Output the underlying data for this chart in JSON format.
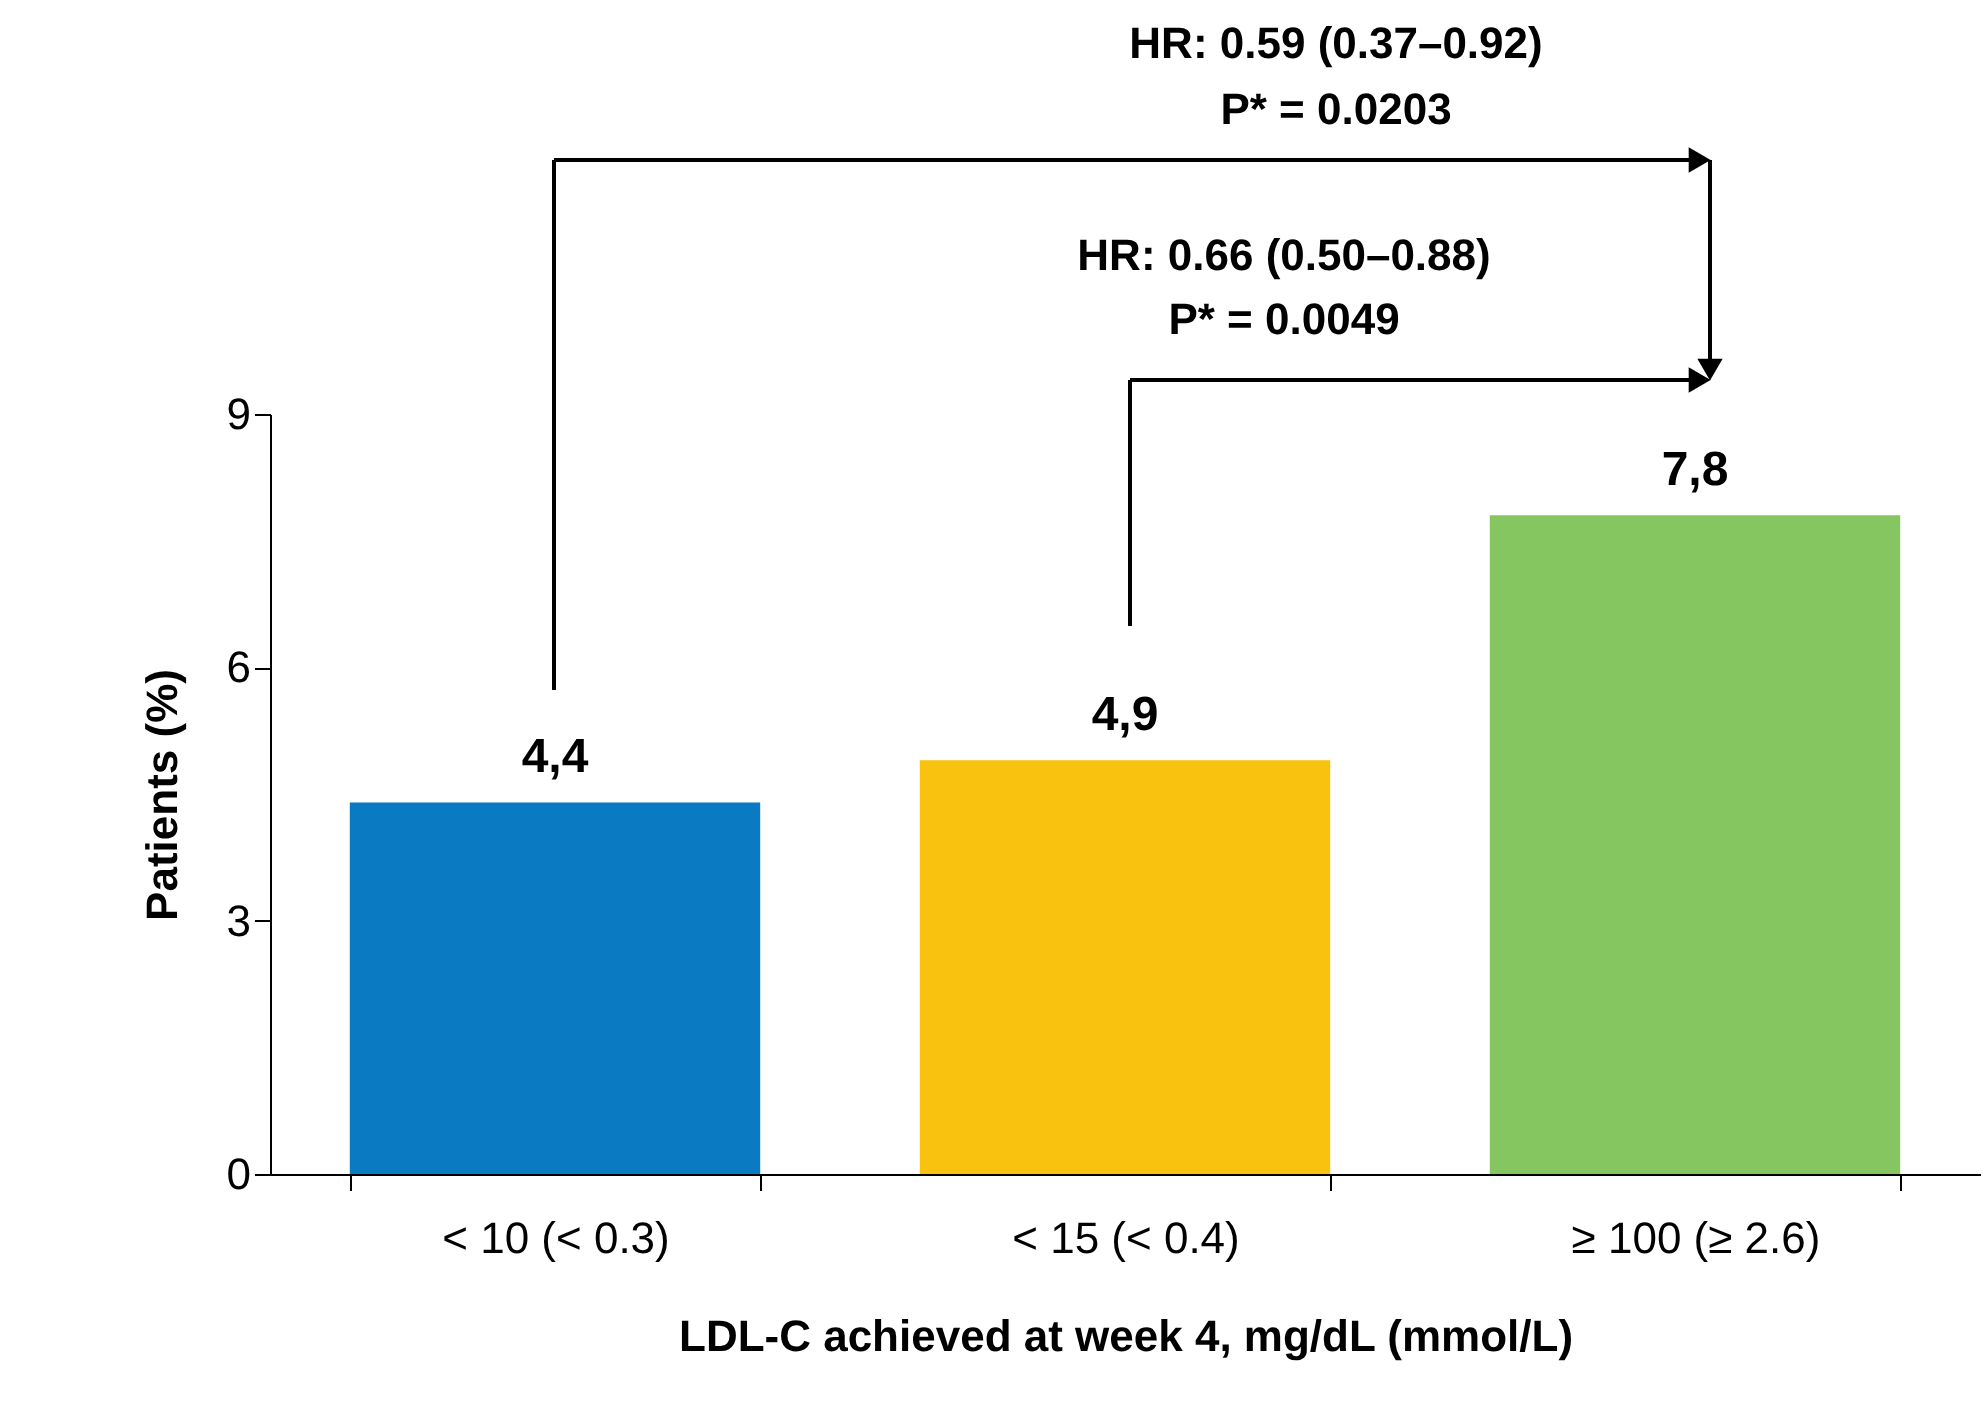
{
  "chart_data": {
    "type": "bar",
    "xlabel": "LDL-C achieved at week 4, mg/dL (mmol/L)",
    "ylabel": "Patients (%)",
    "categories": [
      "< 10 (< 0.3)",
      "< 15 (< 0.4)",
      "≥ 100 (≥ 2.6)"
    ],
    "values": [
      4.4,
      4.9,
      7.8
    ],
    "colors": [
      "#0a7bc2",
      "#f9c20f",
      "#86c661"
    ],
    "value_labels": [
      "4,4",
      "4,9",
      "7,8"
    ],
    "ylim": [
      0,
      9
    ],
    "yticks": [
      0,
      3,
      6,
      9
    ],
    "grid": false,
    "legend": false,
    "annotations": [
      "HR: 0.59 (0.37–0.92)",
      "P* = 0.0203",
      "HR: 0.66 (0.50–0.88)",
      "P* = 0.0049"
    ]
  }
}
